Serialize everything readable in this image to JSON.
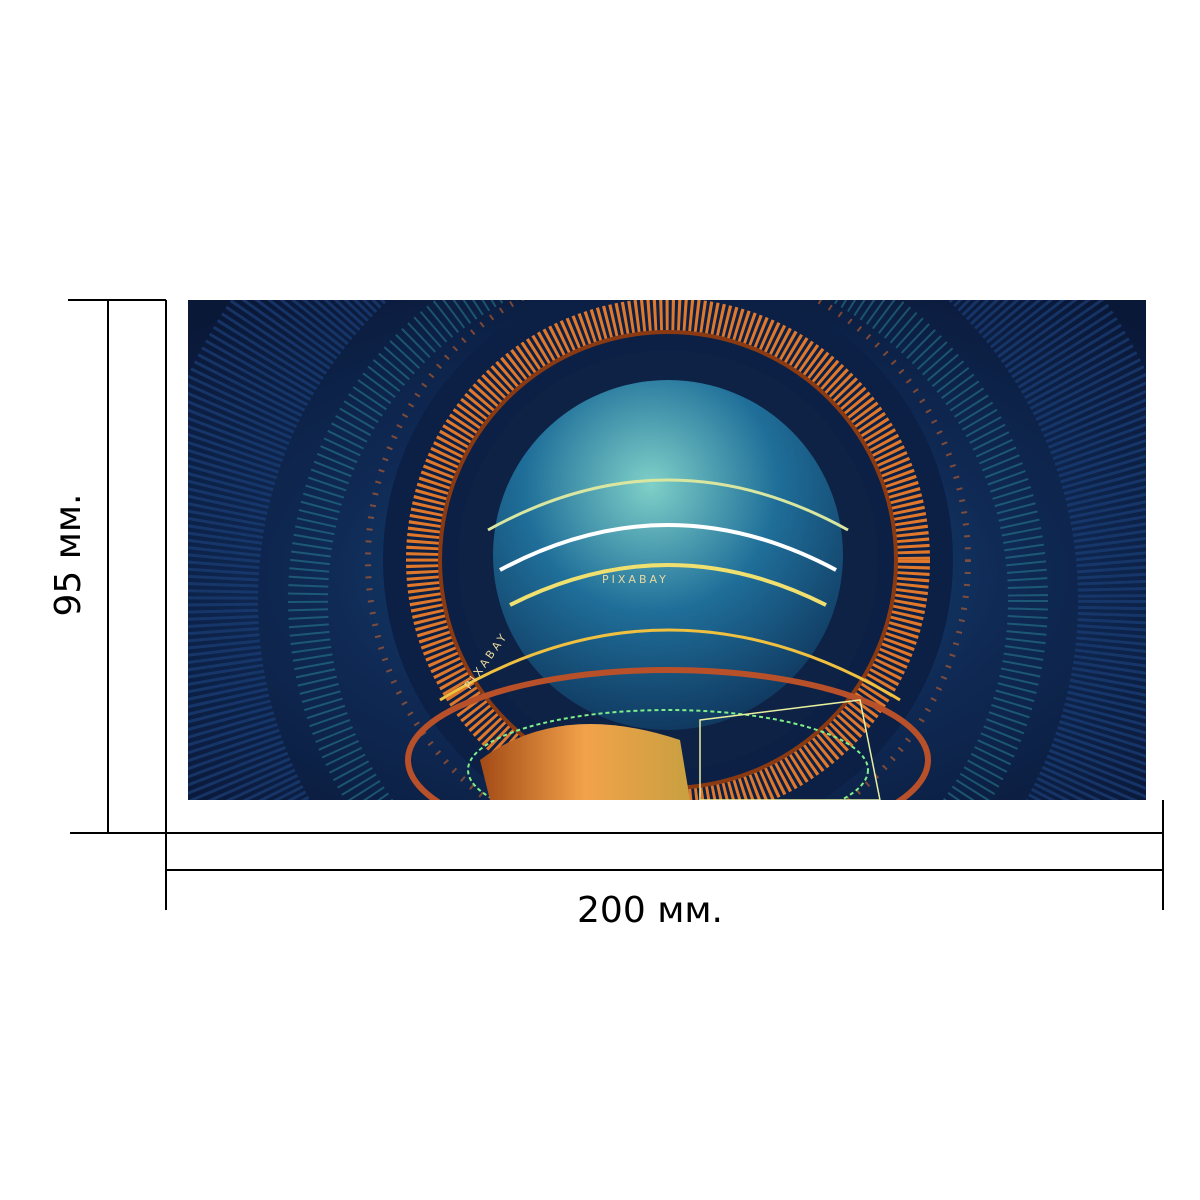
{
  "dimensions": {
    "height_label": "95 мм.",
    "width_label": "200 мм."
  },
  "image": {
    "watermarks": [
      "PIXABAY",
      "PIXABAY"
    ]
  }
}
